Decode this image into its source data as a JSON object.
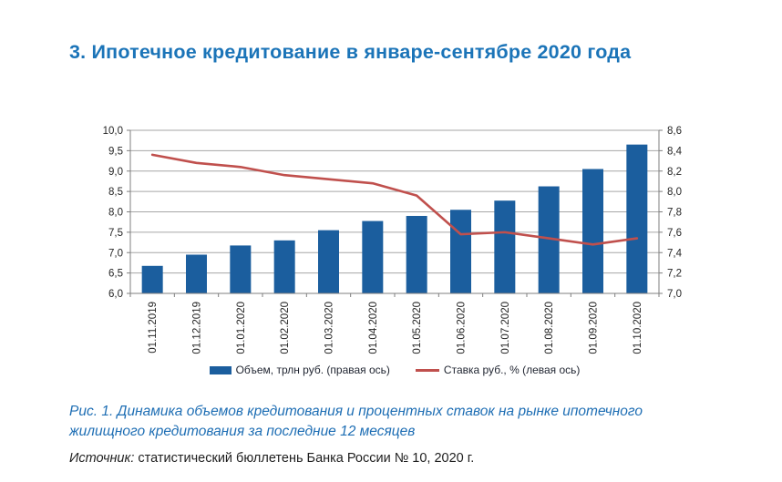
{
  "page": {
    "title": "3. Ипотечное кредитование в январе-сентябре 2020 года"
  },
  "chart_data": {
    "type": "bar",
    "categories": [
      "01.11.2019",
      "01.12.2019",
      "01.01.2020",
      "01.02.2020",
      "01.03.2020",
      "01.04.2020",
      "01.05.2020",
      "01.06.2020",
      "01.07.2020",
      "01.08.2020",
      "01.09.2020",
      "01.10.2020"
    ],
    "series": [
      {
        "name": "Объем, трлн руб. (правая ось)",
        "type": "bar",
        "axis": "right",
        "values": [
          7.27,
          7.38,
          7.47,
          7.52,
          7.62,
          7.71,
          7.76,
          7.82,
          7.91,
          8.05,
          8.22,
          8.46
        ]
      },
      {
        "name": "Ставка руб., % (левая ось)",
        "type": "line",
        "axis": "left",
        "values": [
          9.4,
          9.2,
          9.1,
          8.9,
          8.8,
          8.7,
          8.4,
          7.45,
          7.5,
          7.35,
          7.2,
          7.35
        ]
      }
    ],
    "left_axis": {
      "min": 6.0,
      "max": 10.0,
      "step": 0.5,
      "labels": [
        "10,0",
        "9,5",
        "9,0",
        "8,5",
        "8,0",
        "7,5",
        "7,0",
        "6,5",
        "6,0"
      ]
    },
    "right_axis": {
      "min": 7.0,
      "max": 8.6,
      "step": 0.2,
      "labels": [
        "8,6",
        "8,4",
        "8,2",
        "8,0",
        "7,8",
        "7,6",
        "7,4",
        "7,2",
        "7,0"
      ]
    },
    "grid": true,
    "legend_position": "bottom",
    "title": "",
    "xlabel": "",
    "ylabel": ""
  },
  "colors": {
    "bar": "#1b5e9e",
    "line": "#c0504d",
    "grid": "#a6a6a6",
    "axis": "#7f7f7f",
    "heading": "#1b74b8",
    "caption": "#1e6eb4",
    "text": "#1f1f1f"
  },
  "caption": {
    "text": "Рис. 1. Динамика объемов кредитования и процентных ставок на рынке ипотечного жилищного кредитования за последние 12 месяцев"
  },
  "source": {
    "label": "Источник:",
    "text": " статистический бюллетень Банка России № 10, 2020 г."
  }
}
